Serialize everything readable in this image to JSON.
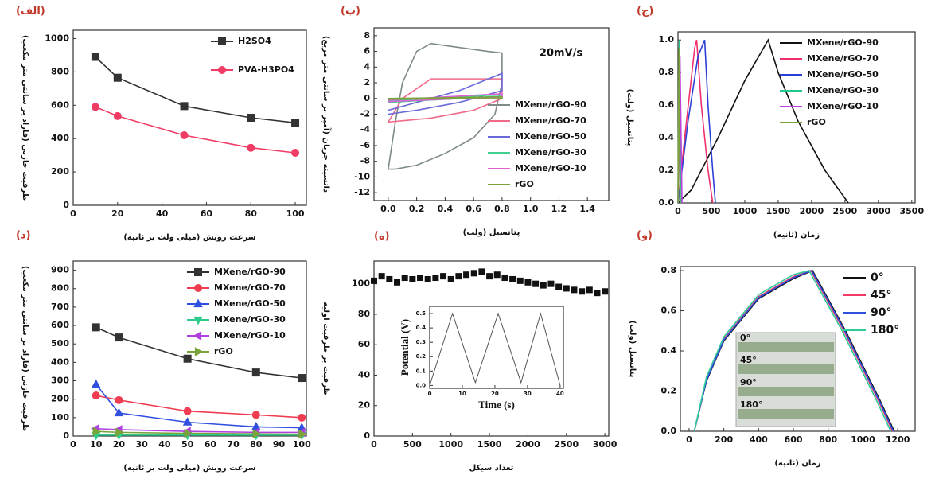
{
  "chart_data": [
    {
      "type": "line",
      "panel_label": "(الف)",
      "x_label": "سرعت روبش (میلی ولت بر ثانیه)",
      "y_label": "ظرفیت خازنی (فاراد بر سانتی متر مکعب)",
      "x": [
        10,
        20,
        50,
        80,
        100
      ],
      "xlim": [
        0,
        105
      ],
      "xticks": [
        0,
        20,
        40,
        60,
        80,
        100
      ],
      "ylim": [
        0,
        1050
      ],
      "yticks": [
        0,
        200,
        400,
        600,
        800,
        1000
      ],
      "legend": "upper right",
      "series": [
        {
          "name": "H2SO4",
          "color": "#333333",
          "marker": "square",
          "values": [
            890,
            765,
            595,
            525,
            495
          ]
        },
        {
          "name": "PVA-H3PO4",
          "color": "#f03c64",
          "marker": "circle",
          "values": [
            590,
            535,
            420,
            345,
            315
          ]
        }
      ]
    },
    {
      "type": "line",
      "panel_label": "(ب)",
      "x_label": "پتانسیل (ولت)",
      "y_label": "دانسیته جریان (آمپر بر سانتی متر مربع)",
      "annotation": "20mV/s",
      "xlim": [
        -0.1,
        1.55
      ],
      "xticks": [
        {
          "value": 0,
          "label": "0.0"
        },
        0.2,
        0.4,
        0.6,
        0.8,
        {
          "value": 1,
          "label": "1.0"
        },
        1.2,
        1.4
      ],
      "ylim": [
        -13,
        9
      ],
      "yticks": [
        -12,
        -10,
        -8,
        -6,
        -4,
        -2,
        0,
        2,
        4,
        6,
        8
      ],
      "legend": "lower right",
      "series": [
        {
          "name": "MXene/rGO-90",
          "color": "#7d8a86",
          "x": [
            0,
            0.05,
            0.1,
            0.2,
            0.3,
            0.5,
            0.7,
            0.8,
            0.8,
            0.75,
            0.6,
            0.4,
            0.2,
            0.05,
            0
          ],
          "values": [
            -9,
            -3,
            2,
            6,
            7,
            6.5,
            6,
            5.8,
            2,
            -2,
            -5,
            -7,
            -8.5,
            -9,
            -9
          ]
        },
        {
          "name": "MXene/rGO-70",
          "color": "#f06a8a",
          "x": [
            0,
            0.1,
            0.3,
            0.8,
            0.8,
            0.6,
            0.3,
            0
          ],
          "values": [
            -3,
            0,
            2.5,
            2.5,
            0,
            -1.5,
            -2.5,
            -3
          ]
        },
        {
          "name": "MXene/rGO-50",
          "color": "#6a6ad8",
          "x": [
            0,
            0.2,
            0.5,
            0.8,
            0.8,
            0.5,
            0.2,
            0
          ],
          "values": [
            -1.5,
            -0.5,
            1,
            3.2,
            1,
            -0.5,
            -1.5,
            -2
          ]
        },
        {
          "name": "MXene/rGO-30",
          "color": "#3fd08f",
          "x": [
            0,
            0.8,
            0.8,
            0
          ],
          "values": [
            -0.3,
            0.5,
            0.3,
            -0.5
          ]
        },
        {
          "name": "MXene/rGO-10",
          "color": "#e060d8",
          "x": [
            0,
            0.8,
            0.8,
            0
          ],
          "values": [
            -0.2,
            0.6,
            0.2,
            -0.4
          ]
        },
        {
          "name": "rGO",
          "color": "#7aa33a",
          "x": [
            0,
            0.8,
            0.8,
            0
          ],
          "values": [
            0,
            0.2,
            0,
            -0.1
          ]
        }
      ]
    },
    {
      "type": "line",
      "panel_label": "(ج)",
      "x_label": "زمان (ثانیه)",
      "y_label": "پتانسیل (ولت)",
      "xlim": [
        0,
        3550
      ],
      "xticks": [
        0,
        500,
        1000,
        1500,
        2000,
        2500,
        3000,
        3500
      ],
      "ylim": [
        0,
        1.05
      ],
      "yticks": [
        {
          "value": 0,
          "label": "0.0"
        },
        0.2,
        0.4,
        0.6,
        0.8,
        {
          "value": 1,
          "label": "1.0"
        }
      ],
      "legend": "upper right",
      "series": [
        {
          "name": "MXene/rGO-90",
          "color": "#111111",
          "x": [
            0,
            200,
            600,
            1000,
            1350,
            1500,
            1800,
            2200,
            2550
          ],
          "values": [
            0,
            0.08,
            0.4,
            0.75,
            1,
            0.8,
            0.5,
            0.2,
            0
          ]
        },
        {
          "name": "MXene/rGO-70",
          "color": "#f0306a",
          "x": [
            0,
            100,
            250,
            280,
            350,
            450,
            520
          ],
          "values": [
            0,
            0.4,
            0.95,
            1,
            0.6,
            0.2,
            0
          ]
        },
        {
          "name": "MXene/rGO-50",
          "color": "#2b3fd6",
          "x": [
            0,
            150,
            300,
            400,
            450,
            520,
            560
          ],
          "values": [
            0,
            0.5,
            0.9,
            1,
            0.6,
            0.2,
            0
          ]
        },
        {
          "name": "MXene/rGO-30",
          "color": "#22c98a",
          "x": [
            0,
            20,
            50
          ],
          "values": [
            0,
            1,
            0
          ]
        },
        {
          "name": "MXene/rGO-10",
          "color": "#c040e0",
          "x": [
            0,
            30,
            60
          ],
          "values": [
            0,
            0.9,
            0
          ]
        },
        {
          "name": "rGO",
          "color": "#7aa33a",
          "x": [
            0,
            15,
            30
          ],
          "values": [
            0,
            0.95,
            0
          ]
        }
      ]
    },
    {
      "type": "line",
      "panel_label": "(د)",
      "x_label": "سرعت روبش (میلی ولت بر ثانیه)",
      "y_label": "ظرفیت خازنی (فاراد بر سانتی متر مکعب)",
      "x": [
        10,
        20,
        50,
        80,
        100
      ],
      "xlim": [
        0,
        102
      ],
      "xticks": [
        0,
        10,
        20,
        30,
        40,
        50,
        60,
        70,
        80,
        90,
        100
      ],
      "ylim": [
        0,
        950
      ],
      "yticks": [
        0,
        100,
        200,
        300,
        400,
        500,
        600,
        700,
        800,
        900
      ],
      "legend": "upper right",
      "series": [
        {
          "name": "MXene/rGO-90",
          "color": "#333333",
          "marker": "square",
          "values": [
            590,
            535,
            420,
            345,
            315
          ]
        },
        {
          "name": "MXene/rGO-70",
          "color": "#f03c50",
          "marker": "circle",
          "values": [
            220,
            195,
            135,
            115,
            100
          ]
        },
        {
          "name": "MXene/rGO-50",
          "color": "#3050e0",
          "marker": "triangle-up",
          "values": [
            280,
            125,
            75,
            50,
            45
          ]
        },
        {
          "name": "MXene/rGO-30",
          "color": "#2ecc8a",
          "marker": "triangle-down",
          "values": [
            5,
            5,
            5,
            5,
            5
          ]
        },
        {
          "name": "MXene/rGO-10",
          "color": "#b040e0",
          "marker": "triangle-left",
          "values": [
            40,
            35,
            25,
            20,
            20
          ]
        },
        {
          "name": "rGO",
          "color": "#7aa33a",
          "marker": "triangle-right",
          "values": [
            25,
            20,
            15,
            12,
            10
          ]
        }
      ]
    },
    {
      "type": "scatter",
      "panel_label": "(ه)",
      "x_label": "تعداد سیکل",
      "y_label": "ظرفیت بر ظرفیت اولیه",
      "x": [
        0,
        100,
        200,
        300,
        400,
        500,
        600,
        700,
        800,
        900,
        1000,
        1100,
        1200,
        1300,
        1400,
        1500,
        1600,
        1700,
        1800,
        1900,
        2000,
        2100,
        2200,
        2300,
        2400,
        2500,
        2600,
        2700,
        2800,
        2900,
        3000
      ],
      "xlim": [
        0,
        3050
      ],
      "xticks": [
        0,
        500,
        1000,
        1500,
        2000,
        2500,
        3000
      ],
      "ylim": [
        0,
        115
      ],
      "yticks": [
        0,
        20,
        40,
        60,
        80,
        100
      ],
      "series": [
        {
          "color": "#111111",
          "marker": "square",
          "values": [
            102,
            105,
            103,
            101,
            104,
            103,
            104,
            103,
            104,
            105,
            103,
            105,
            106,
            107,
            108,
            105,
            106,
            104,
            103,
            102,
            101,
            100,
            99,
            100,
            98,
            97,
            96,
            95,
            96,
            94,
            95
          ]
        }
      ]
    },
    {
      "type": "line",
      "x_label": "Time (s)",
      "y_label": "Potential (V)",
      "xlim": [
        0,
        41
      ],
      "xticks": [
        0,
        10,
        20,
        30,
        40
      ],
      "ylim": [
        -0.02,
        0.55
      ],
      "yticks": [
        {
          "value": 0,
          "label": "0.0"
        },
        0.1,
        0.2,
        0.3,
        0.4,
        0.5
      ],
      "series": [
        {
          "color": "#555555",
          "x": [
            0,
            7,
            14,
            21,
            28,
            34,
            40
          ],
          "values": [
            0,
            0.5,
            0.02,
            0.5,
            0.02,
            0.5,
            0
          ]
        }
      ]
    },
    {
      "type": "line",
      "panel_label": "(و)",
      "x_label": "زمان (ثانیه)",
      "y_label": "پتانسیل (ولت)",
      "inset_labels": [
        "0°",
        "45°",
        "90°",
        "180°"
      ],
      "xlim": [
        -50,
        1300
      ],
      "xticks": [
        0,
        200,
        400,
        600,
        800,
        1000,
        1200
      ],
      "ylim": [
        0,
        0.82
      ],
      "yticks": [
        {
          "value": 0,
          "label": "0.0"
        },
        0.2,
        0.4,
        0.6,
        0.8
      ],
      "legend": "upper right",
      "series": [
        {
          "name": "0°",
          "color": "#111111",
          "x": [
            30,
            100,
            200,
            400,
            600,
            710,
            900,
            1100,
            1180
          ],
          "values": [
            0,
            0.25,
            0.45,
            0.66,
            0.76,
            0.8,
            0.5,
            0.15,
            0
          ]
        },
        {
          "name": "45°",
          "color": "#f03c64",
          "x": [
            30,
            100,
            200,
            400,
            600,
            700,
            890,
            1090,
            1170
          ],
          "values": [
            0,
            0.26,
            0.46,
            0.67,
            0.77,
            0.8,
            0.5,
            0.15,
            0
          ]
        },
        {
          "name": "90°",
          "color": "#3050e0",
          "x": [
            30,
            100,
            200,
            400,
            600,
            705,
            895,
            1095,
            1175
          ],
          "values": [
            0,
            0.255,
            0.455,
            0.665,
            0.765,
            0.8,
            0.5,
            0.15,
            0
          ]
        },
        {
          "name": "180°",
          "color": "#2ecc9a",
          "x": [
            30,
            100,
            200,
            400,
            600,
            690,
            880,
            1080,
            1160
          ],
          "values": [
            0,
            0.27,
            0.47,
            0.68,
            0.78,
            0.8,
            0.5,
            0.15,
            0
          ]
        }
      ]
    }
  ]
}
